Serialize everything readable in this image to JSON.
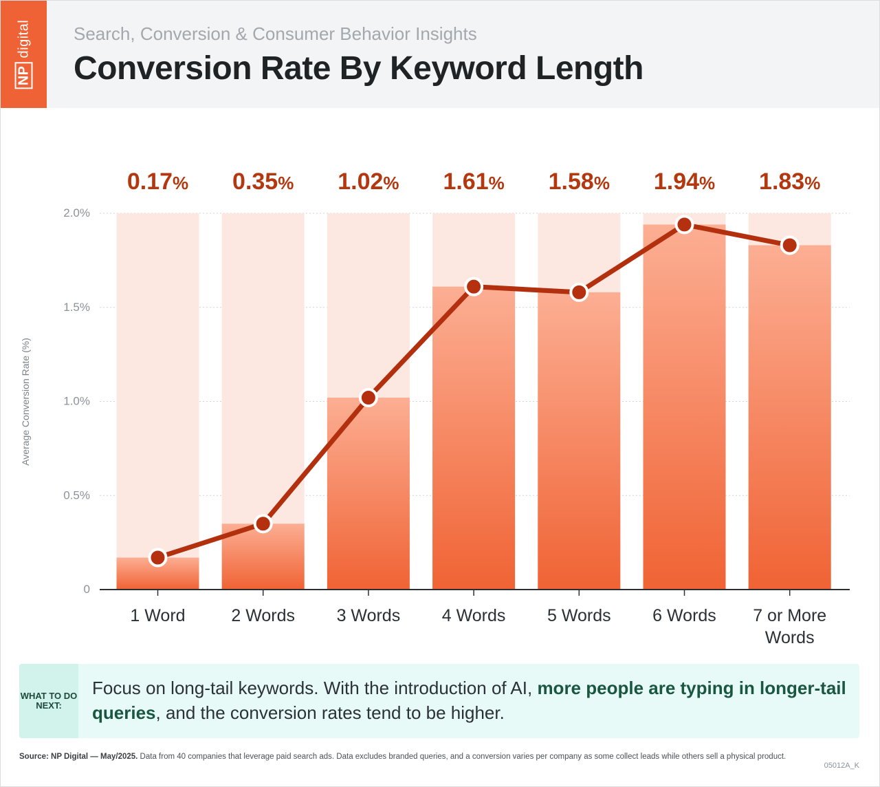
{
  "header": {
    "logo_np": "NP",
    "logo_digital": "digital",
    "subtitle": "Search, Conversion & Consumer Behavior Insights",
    "title": "Conversion Rate By Keyword Length"
  },
  "colors": {
    "brand_orange": "#ee6236",
    "line": "#b3300e",
    "label": "#b3380f",
    "bar_bg": "#fde8e1",
    "bar_top": "#fcae93",
    "bar_bottom": "#f06334",
    "note_bg": "#e8faf7",
    "note_accent": "#1a5740"
  },
  "chart_data": {
    "type": "bar",
    "overlay": "line",
    "ylabel": "Average Conversion Rate (%)",
    "ylim": [
      0,
      2.0
    ],
    "yticks": [
      "0",
      "0.5%",
      "1.0%",
      "1.5%",
      "2.0%"
    ],
    "ytick_values": [
      0,
      0.5,
      1.0,
      1.5,
      2.0
    ],
    "grid": true,
    "categories": [
      "1 Word",
      "2 Words",
      "3 Words",
      "4 Words",
      "5 Words",
      "6 Words",
      "7 or More|Words"
    ],
    "values": [
      0.17,
      0.35,
      1.02,
      1.61,
      1.58,
      1.94,
      1.83
    ],
    "value_labels": [
      "0.17%",
      "0.35%",
      "1.02%",
      "1.61%",
      "1.58%",
      "1.94%",
      "1.83%"
    ]
  },
  "note": {
    "tag": "WHAT TO DO NEXT:",
    "text_before": "Focus on long-tail keywords. With the introduction of AI, ",
    "text_bold": "more people are typing in longer-tail queries",
    "text_after": ", and the conversion rates tend to be higher."
  },
  "footer": {
    "source_bold": "Source: NP Digital — May/2025.",
    "source_text": " Data from 40 companies that leverage paid search ads. Data excludes branded queries, and a conversion varies per company as some collect leads while others sell a physical product.",
    "code": "05012A_K"
  }
}
